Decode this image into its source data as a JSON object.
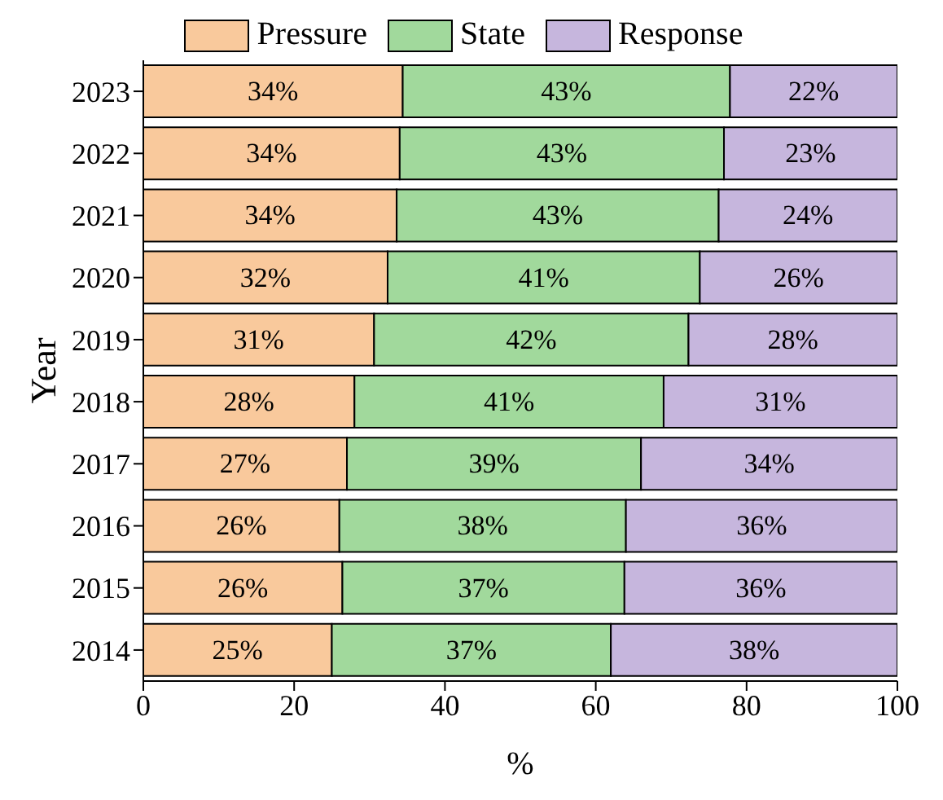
{
  "chart_data": {
    "type": "bar",
    "orientation": "horizontal",
    "stacked": true,
    "xlabel": "%",
    "ylabel": "Year",
    "categories": [
      "2023",
      "2022",
      "2021",
      "2020",
      "2019",
      "2018",
      "2017",
      "2016",
      "2015",
      "2014"
    ],
    "xlim": [
      0,
      100
    ],
    "xticks": [
      0,
      20,
      40,
      60,
      80,
      100
    ],
    "legend": "top",
    "grid": false,
    "series": [
      {
        "name": "Pressure",
        "color": "#f9c99c",
        "values": [
          34.4,
          34,
          33.6,
          32.4,
          30.6,
          28,
          27,
          26,
          26.4,
          25
        ],
        "value_labels": [
          "34%",
          "34%",
          "34%",
          "32%",
          "31%",
          "28%",
          "27%",
          "26%",
          "26%",
          "25%"
        ]
      },
      {
        "name": "State",
        "color": "#a1d99c",
        "values": [
          43.4,
          43,
          42.7,
          41.4,
          41.7,
          41,
          39,
          38,
          37.4,
          37
        ],
        "value_labels": [
          "43%",
          "43%",
          "43%",
          "41%",
          "42%",
          "41%",
          "39%",
          "38%",
          "37%",
          "37%"
        ]
      },
      {
        "name": "Response",
        "color": "#c6b6dd",
        "values": [
          22.2,
          23,
          23.7,
          26.2,
          27.7,
          31,
          34,
          36,
          36.2,
          38
        ],
        "value_labels": [
          "22%",
          "23%",
          "24%",
          "26%",
          "28%",
          "31%",
          "34%",
          "36%",
          "36%",
          "38%"
        ]
      }
    ]
  }
}
